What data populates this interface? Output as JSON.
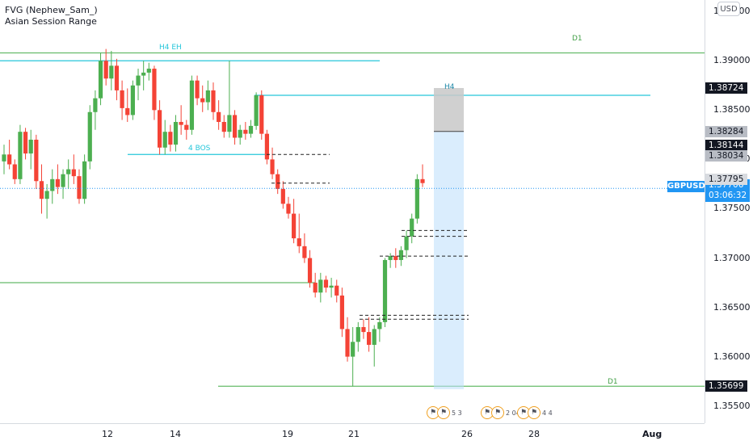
{
  "legend": {
    "line1": "FVG (Nephew_Sam_)",
    "line2": "Asian Session Range"
  },
  "currency": "USD",
  "symbol": "GBPUSD",
  "last_price": "1.37706",
  "countdown": "03:06:32",
  "price_ticks": [
    {
      "label": "1.39500",
      "price": 1.395
    },
    {
      "label": "1.39000",
      "price": 1.39
    },
    {
      "label": "1.38500",
      "price": 1.385
    },
    {
      "label": "1.38000",
      "price": 1.38
    },
    {
      "label": "1.37500",
      "price": 1.375
    },
    {
      "label": "1.37000",
      "price": 1.37
    },
    {
      "label": "1.36500",
      "price": 1.365
    },
    {
      "label": "1.36000",
      "price": 1.36
    },
    {
      "label": "1.35500",
      "price": 1.355
    }
  ],
  "price_tags": [
    {
      "label": "1.38724",
      "price": 1.38724,
      "bg": "#131722",
      "fg": "#ffffff"
    },
    {
      "label": "1.38284",
      "price": 1.38284,
      "bg": "#b8bcc4",
      "fg": "#131722"
    },
    {
      "label": "1.38144",
      "price": 1.38144,
      "bg": "#131722",
      "fg": "#ffffff"
    },
    {
      "label": "1.38034",
      "price": 1.38034,
      "bg": "#b8bcc4",
      "fg": "#131722"
    },
    {
      "label": "1.37795",
      "price": 1.37795,
      "bg": "#d8dbe0",
      "fg": "#131722"
    },
    {
      "label": "1.35699",
      "price": 1.35699,
      "bg": "#131722",
      "fg": "#ffffff"
    }
  ],
  "time_ticks": [
    {
      "label": "12",
      "bold": false
    },
    {
      "label": "14",
      "bold": false
    },
    {
      "label": "19",
      "bold": false
    },
    {
      "label": "21",
      "bold": false
    },
    {
      "label": "26",
      "bold": false
    },
    {
      "label": "28",
      "bold": false
    },
    {
      "label": "Aug",
      "bold": true
    }
  ],
  "annotations": {
    "h4_eh": "H4 EH",
    "h4_bos": "4 BOS",
    "h4": "H4",
    "d1_top": "D1",
    "d1_bottom": "D1"
  },
  "events": [
    {
      "count": "5 3"
    },
    {
      "count": "2 04"
    },
    {
      "count": "4 4"
    }
  ],
  "colors": {
    "up": "#26a69a",
    "up_fill": "#4caf50",
    "down": "#f44336",
    "level_cyan": "#26c6da",
    "level_green": "#66bb6a",
    "accent": "#2196f3",
    "range_box": "#bbdefb"
  },
  "chart_data": {
    "type": "candlestick",
    "symbol": "GBPUSD",
    "ylim": [
      1.3535,
      1.396
    ],
    "levels": [
      {
        "label": "D1",
        "price": 1.3908
      },
      {
        "label": "H4 EH",
        "price": 1.39
      },
      {
        "label": "H4",
        "price": 1.3865
      },
      {
        "label": "4 BOS",
        "price": 1.3805
      },
      {
        "label": "",
        "price": 1.3675
      },
      {
        "label": "D1",
        "price": 1.357
      }
    ],
    "candles": [
      [
        1.3798,
        1.3815,
        1.3785,
        1.3805
      ],
      [
        1.3805,
        1.382,
        1.379,
        1.3795
      ],
      [
        1.3795,
        1.38,
        1.3775,
        1.378
      ],
      [
        1.378,
        1.3835,
        1.3775,
        1.3828
      ],
      [
        1.3828,
        1.3832,
        1.38,
        1.3806
      ],
      [
        1.3806,
        1.383,
        1.379,
        1.382
      ],
      [
        1.382,
        1.3825,
        1.377,
        1.3778
      ],
      [
        1.3778,
        1.3795,
        1.3745,
        1.376
      ],
      [
        1.376,
        1.3775,
        1.374,
        1.3768
      ],
      [
        1.3768,
        1.379,
        1.3755,
        1.378
      ],
      [
        1.378,
        1.3795,
        1.3765,
        1.3772
      ],
      [
        1.3772,
        1.379,
        1.376,
        1.3785
      ],
      [
        1.3785,
        1.38,
        1.377,
        1.379
      ],
      [
        1.379,
        1.3805,
        1.3775,
        1.3783
      ],
      [
        1.3783,
        1.379,
        1.3755,
        1.376
      ],
      [
        1.376,
        1.3805,
        1.3755,
        1.3798
      ],
      [
        1.3798,
        1.3855,
        1.379,
        1.3848
      ],
      [
        1.3848,
        1.387,
        1.383,
        1.3862
      ],
      [
        1.3862,
        1.3908,
        1.3855,
        1.39
      ],
      [
        1.39,
        1.3912,
        1.3875,
        1.3882
      ],
      [
        1.3882,
        1.391,
        1.387,
        1.3895
      ],
      [
        1.3895,
        1.3902,
        1.386,
        1.387
      ],
      [
        1.387,
        1.388,
        1.384,
        1.3852
      ],
      [
        1.3852,
        1.3872,
        1.3838,
        1.3845
      ],
      [
        1.3845,
        1.388,
        1.384,
        1.3875
      ],
      [
        1.3875,
        1.3892,
        1.386,
        1.3885
      ],
      [
        1.3885,
        1.39,
        1.387,
        1.3888
      ],
      [
        1.3888,
        1.3898,
        1.388,
        1.3892
      ],
      [
        1.3892,
        1.3895,
        1.384,
        1.385
      ],
      [
        1.385,
        1.386,
        1.3805,
        1.3812
      ],
      [
        1.3812,
        1.384,
        1.3805,
        1.3828
      ],
      [
        1.3828,
        1.3835,
        1.3808,
        1.3815
      ],
      [
        1.3815,
        1.3845,
        1.3808,
        1.3838
      ],
      [
        1.3838,
        1.3855,
        1.3825,
        1.3835
      ],
      [
        1.3835,
        1.384,
        1.382,
        1.383
      ],
      [
        1.383,
        1.3885,
        1.3825,
        1.388
      ],
      [
        1.388,
        1.3885,
        1.3855,
        1.3862
      ],
      [
        1.3862,
        1.3875,
        1.3848,
        1.3858
      ],
      [
        1.3858,
        1.388,
        1.385,
        1.387
      ],
      [
        1.387,
        1.3878,
        1.384,
        1.3848
      ],
      [
        1.3848,
        1.386,
        1.383,
        1.3838
      ],
      [
        1.3838,
        1.3845,
        1.3822,
        1.3828
      ],
      [
        1.3828,
        1.39,
        1.3822,
        1.3845
      ],
      [
        1.3845,
        1.385,
        1.3815,
        1.3822
      ],
      [
        1.3822,
        1.3835,
        1.3815,
        1.383
      ],
      [
        1.383,
        1.3838,
        1.382,
        1.3826
      ],
      [
        1.3826,
        1.384,
        1.3822,
        1.3834
      ],
      [
        1.3834,
        1.3868,
        1.383,
        1.3865
      ],
      [
        1.3865,
        1.387,
        1.382,
        1.3826
      ],
      [
        1.3826,
        1.383,
        1.3795,
        1.38
      ],
      [
        1.38,
        1.3812,
        1.378,
        1.3785
      ],
      [
        1.3785,
        1.379,
        1.3765,
        1.377
      ],
      [
        1.377,
        1.3778,
        1.375,
        1.3755
      ],
      [
        1.3755,
        1.3762,
        1.374,
        1.3745
      ],
      [
        1.3745,
        1.376,
        1.3715,
        1.372
      ],
      [
        1.372,
        1.3745,
        1.3705,
        1.3712
      ],
      [
        1.3712,
        1.3725,
        1.3695,
        1.37
      ],
      [
        1.37,
        1.3708,
        1.367,
        1.3675
      ],
      [
        1.3675,
        1.3685,
        1.366,
        1.3665
      ],
      [
        1.3665,
        1.3685,
        1.3655,
        1.3678
      ],
      [
        1.3678,
        1.3682,
        1.3665,
        1.367
      ],
      [
        1.367,
        1.368,
        1.366,
        1.3672
      ],
      [
        1.3672,
        1.3678,
        1.3655,
        1.3662
      ],
      [
        1.3662,
        1.367,
        1.362,
        1.3628
      ],
      [
        1.3628,
        1.364,
        1.3595,
        1.36
      ],
      [
        1.36,
        1.363,
        1.357,
        1.3615
      ],
      [
        1.3615,
        1.3635,
        1.3605,
        1.363
      ],
      [
        1.363,
        1.3638,
        1.3618,
        1.3625
      ],
      [
        1.3625,
        1.364,
        1.3605,
        1.3612
      ],
      [
        1.3612,
        1.3632,
        1.359,
        1.3628
      ],
      [
        1.3628,
        1.364,
        1.3615,
        1.3635
      ],
      [
        1.3635,
        1.37,
        1.363,
        1.3698
      ],
      [
        1.3698,
        1.3705,
        1.369,
        1.3702
      ],
      [
        1.3702,
        1.371,
        1.369,
        1.3698
      ],
      [
        1.3698,
        1.3712,
        1.3692,
        1.3708
      ],
      [
        1.3708,
        1.3728,
        1.37,
        1.3722
      ],
      [
        1.3722,
        1.3745,
        1.3715,
        1.374
      ],
      [
        1.374,
        1.3785,
        1.3735,
        1.378
      ],
      [
        1.378,
        1.3795,
        1.3772,
        1.3776
      ]
    ]
  }
}
